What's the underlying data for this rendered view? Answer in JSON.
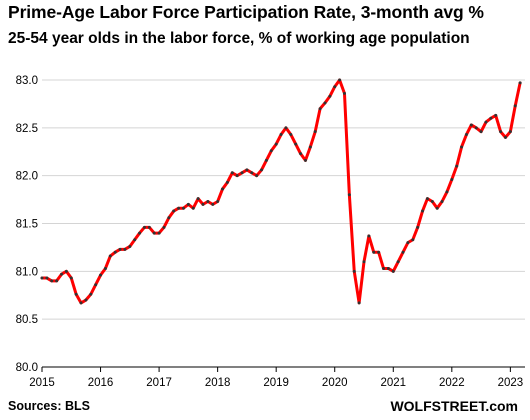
{
  "header": {
    "title": "Prime-Age Labor Force Participation  Rate, 3-month avg %",
    "subtitle": "25-54 year olds in the labor force, % of working age population"
  },
  "footer": {
    "source": "Sources: BLS",
    "brand": "WOLFSTREET.com"
  },
  "colors": {
    "line": "#ff0000",
    "marker": "#333333",
    "grid": "#d4d4d4"
  },
  "chart_data": {
    "type": "line",
    "title": "Prime-Age Labor Force Participation  Rate, 3-month avg %",
    "subtitle": "25-54 year olds in the labor force, % of working age population",
    "xlabel": "",
    "ylabel": "",
    "xlim": [
      2015.0,
      2023.25
    ],
    "ylim": [
      80.0,
      83.0
    ],
    "grid": "horizontal",
    "legend": "none",
    "x_ticks": [
      2015,
      2016,
      2017,
      2018,
      2019,
      2020,
      2021,
      2022,
      2023
    ],
    "y_ticks": [
      {
        "value": 80.0,
        "label": "80.0"
      },
      {
        "value": 80.5,
        "label": "80.5"
      },
      {
        "value": 81.0,
        "label": "81.0"
      },
      {
        "value": 81.5,
        "label": "81.5"
      },
      {
        "value": 82.0,
        "label": "82.0"
      },
      {
        "value": 82.5,
        "label": "82.5"
      },
      {
        "value": 83.0,
        "label": "83.0"
      }
    ],
    "series": [
      {
        "x_start": 2015.0,
        "x_step": 0.083333,
        "values": [
          80.93,
          80.93,
          80.9,
          80.9,
          80.97,
          81.0,
          80.93,
          80.76,
          80.67,
          80.7,
          80.76,
          80.86,
          80.96,
          81.03,
          81.16,
          81.2,
          81.23,
          81.23,
          81.26,
          81.33,
          81.4,
          81.46,
          81.46,
          81.4,
          81.4,
          81.46,
          81.56,
          81.63,
          81.66,
          81.66,
          81.7,
          81.66,
          81.76,
          81.7,
          81.73,
          81.7,
          81.73,
          81.86,
          81.93,
          82.03,
          82.0,
          82.03,
          82.06,
          82.03,
          82.0,
          82.06,
          82.16,
          82.26,
          82.33,
          82.43,
          82.5,
          82.43,
          82.33,
          82.23,
          82.16,
          82.3,
          82.46,
          82.7,
          82.76,
          82.83,
          82.93,
          83.0,
          82.86,
          81.8,
          81.0,
          80.67,
          81.1,
          81.37,
          81.2,
          81.2,
          81.03,
          81.03,
          81.0,
          81.1,
          81.2,
          81.3,
          81.33,
          81.46,
          81.63,
          81.76,
          81.73,
          81.66,
          81.73,
          81.83,
          81.96,
          82.1,
          82.3,
          82.43,
          82.53,
          82.5,
          82.46,
          82.56,
          82.6,
          82.63,
          82.46,
          82.4,
          82.46,
          82.73,
          82.97
        ]
      }
    ]
  }
}
